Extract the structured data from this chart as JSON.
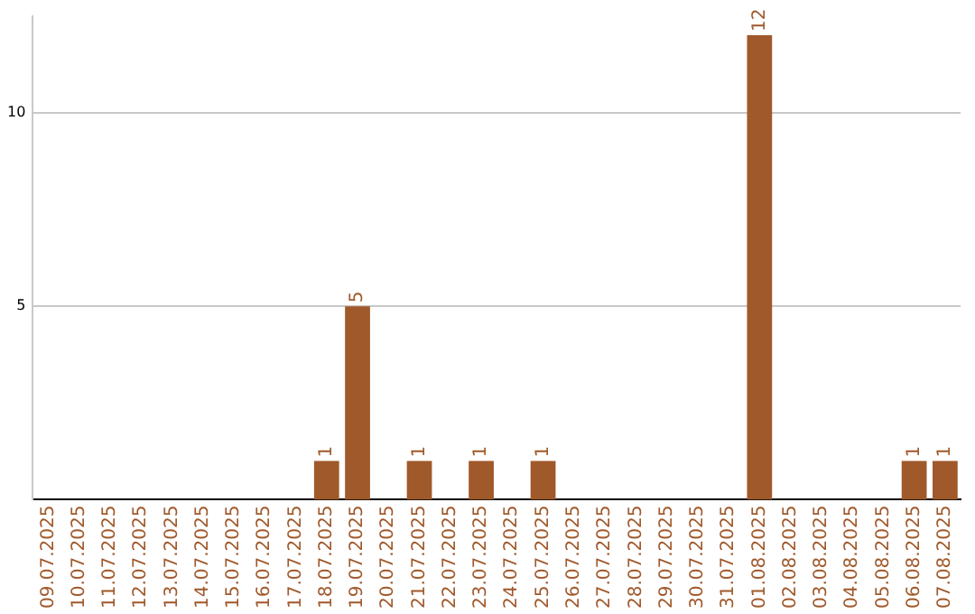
{
  "chart_data": {
    "type": "bar",
    "categories": [
      "09.07.2025",
      "10.07.2025",
      "11.07.2025",
      "12.07.2025",
      "13.07.2025",
      "14.07.2025",
      "15.07.2025",
      "16.07.2025",
      "17.07.2025",
      "18.07.2025",
      "19.07.2025",
      "20.07.2025",
      "21.07.2025",
      "22.07.2025",
      "23.07.2025",
      "24.07.2025",
      "25.07.2025",
      "26.07.2025",
      "27.07.2025",
      "28.07.2025",
      "29.07.2025",
      "30.07.2025",
      "31.07.2025",
      "01.08.2025",
      "02.08.2025",
      "03.08.2025",
      "04.08.2025",
      "05.08.2025",
      "06.08.2025",
      "07.08.2025"
    ],
    "values": [
      0,
      0,
      0,
      0,
      0,
      0,
      0,
      0,
      0,
      1,
      5,
      0,
      1,
      0,
      1,
      0,
      1,
      0,
      0,
      0,
      0,
      0,
      0,
      12,
      0,
      0,
      0,
      0,
      1,
      1
    ],
    "value_labels": [
      null,
      null,
      null,
      null,
      null,
      null,
      null,
      null,
      null,
      "1",
      "5",
      null,
      "1",
      null,
      "1",
      null,
      "1",
      null,
      null,
      null,
      null,
      null,
      null,
      "12",
      null,
      null,
      null,
      null,
      "1",
      "1"
    ],
    "color": "#a0592b",
    "ylim": [
      0,
      12.5
    ],
    "yticks": [
      5,
      10
    ],
    "grid": "y",
    "legend": false
  }
}
